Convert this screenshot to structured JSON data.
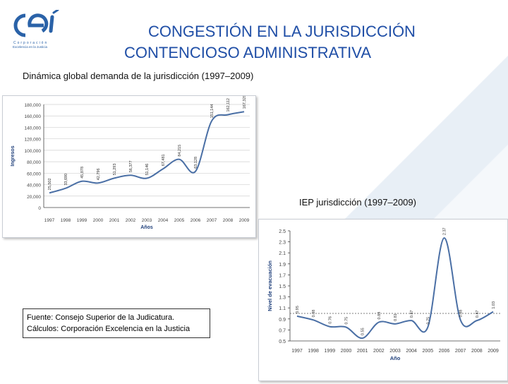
{
  "title": {
    "line1": "CONGESTIÓN EN LA JURISDICCIÓN",
    "line2": "CONTENCIOSO ADMINISTRATIVA"
  },
  "logo": {
    "line1": "Corporación",
    "line2": "Excelencia en la Justicia"
  },
  "subtitles": {
    "demand": "Dinámica global demanda de la jurisdicción (1997–2009)",
    "iep": "IEP jurisdicción (1997–2009)"
  },
  "source": {
    "line1": "Fuente: Consejo Superior de la Judicatura.",
    "line2": "Cálculos: Corporación Excelencia en la Justicia"
  },
  "colors": {
    "title": "#1f4ea6",
    "line": "#4a6fa5",
    "grid": "#d0d0d0",
    "axis": "#444444",
    "axis_title": "#1f3f7a"
  },
  "chart_data": [
    {
      "type": "line",
      "xlabel": "Años",
      "ylabel": "Ingresos",
      "ylim": [
        0,
        180000
      ],
      "yticks": [
        "0",
        "20,000",
        "40,000",
        "60,000",
        "80,000",
        "100,000",
        "120,000",
        "140,000",
        "160,000",
        "180,000"
      ],
      "categories": [
        "1997",
        "1998",
        "1999",
        "2000",
        "2001",
        "2002",
        "2003",
        "2004",
        "2005",
        "2006",
        "2007",
        "2008",
        "2009"
      ],
      "series": [
        {
          "values": [
            25502,
            33690,
            45878,
            42796,
            51293,
            56377,
            51146,
            67481,
            84215,
            63128,
            151144,
            162112,
            167329
          ],
          "labels": [
            "25,502",
            "33,690",
            "45,878",
            "42,796",
            "51,293",
            "56,377",
            "51,146",
            "67,481",
            "84,215",
            "63,128",
            "151,144",
            "162,112",
            "167,329"
          ]
        }
      ],
      "grid": true
    },
    {
      "type": "line",
      "xlabel": "Año",
      "ylabel": "Nivel de evacuación",
      "ylim": [
        0.5,
        2.5
      ],
      "yticks": [
        "0.5",
        "0.7",
        "0.9",
        "1.1",
        "1.3",
        "1.5",
        "1.7",
        "1.9",
        "2.1",
        "2.3",
        "2.5"
      ],
      "categories": [
        "1997",
        "1998",
        "1999",
        "2000",
        "2001",
        "2002",
        "2003",
        "2004",
        "2005",
        "2006",
        "2007",
        "2008",
        "2009"
      ],
      "series": [
        {
          "values": [
            0.95,
            0.88,
            0.76,
            0.75,
            0.55,
            0.84,
            0.81,
            0.87,
            0.75,
            2.37,
            0.88,
            0.87,
            1.03
          ],
          "labels": [
            "0.95",
            "0.88",
            "0.76",
            "0.75",
            "0.55",
            "0.84",
            "0.81",
            "0.87",
            "0.75",
            "2.37",
            "0.88",
            "0.87",
            "1.03"
          ]
        }
      ],
      "reference_line": 1.0,
      "grid": false
    }
  ]
}
